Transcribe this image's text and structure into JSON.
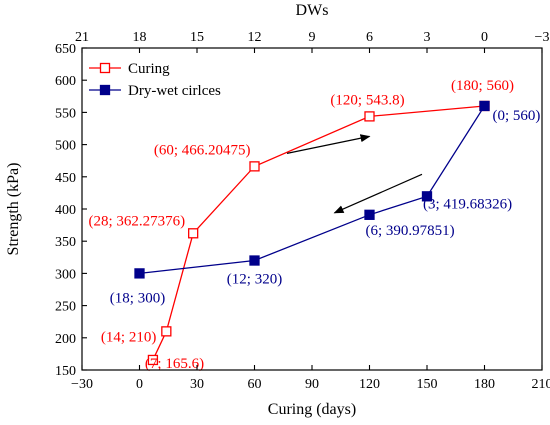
{
  "chart_data": {
    "type": "line",
    "xlabel": "Curing (days)",
    "ylabel": "Strength (kPa)",
    "x2label": "DWs",
    "xlim": [
      -30,
      210
    ],
    "x2lim": [
      21,
      -3
    ],
    "ylim": [
      150,
      650
    ],
    "xticks": [
      -30,
      0,
      30,
      60,
      90,
      120,
      150,
      180,
      210
    ],
    "x2ticks": [
      21,
      18,
      15,
      12,
      9,
      6,
      3,
      0,
      -3
    ],
    "yticks": [
      150,
      200,
      250,
      300,
      350,
      400,
      450,
      500,
      550,
      600,
      650
    ],
    "grid": false,
    "legend_position": "top-left",
    "series": [
      {
        "name": "Curing",
        "axis": "bottom",
        "color": "#ff0000",
        "marker": "open-square",
        "points": [
          {
            "x": 7,
            "y": 165.6,
            "label": "(7; 165.6)"
          },
          {
            "x": 14,
            "y": 210,
            "label": "(14; 210)"
          },
          {
            "x": 28,
            "y": 362.27376,
            "label": "(28; 362.27376)"
          },
          {
            "x": 60,
            "y": 466.20475,
            "label": "(60; 466.20475)"
          },
          {
            "x": 120,
            "y": 543.8,
            "label": "(120; 543.8)"
          },
          {
            "x": 180,
            "y": 560,
            "label": "(180; 560)"
          }
        ]
      },
      {
        "name": "Dry-wet cirlces",
        "axis": "top",
        "color": "#00008b",
        "marker": "filled-square",
        "points": [
          {
            "x": 0,
            "y": 560,
            "label": "(0; 560)"
          },
          {
            "x": 3,
            "y": 419.68326,
            "label": "(3; 419.68326)"
          },
          {
            "x": 6,
            "y": 390.97851,
            "label": "(6; 390.97851)"
          },
          {
            "x": 12,
            "y": 320,
            "label": "(12; 320)"
          },
          {
            "x": 18,
            "y": 300,
            "label": "(18; 300)"
          }
        ]
      }
    ],
    "annotations": [
      {
        "type": "arrow",
        "direction": "up-right",
        "near_series": "Curing"
      },
      {
        "type": "arrow",
        "direction": "down-left",
        "near_series": "Dry-wet cirlces"
      }
    ]
  }
}
